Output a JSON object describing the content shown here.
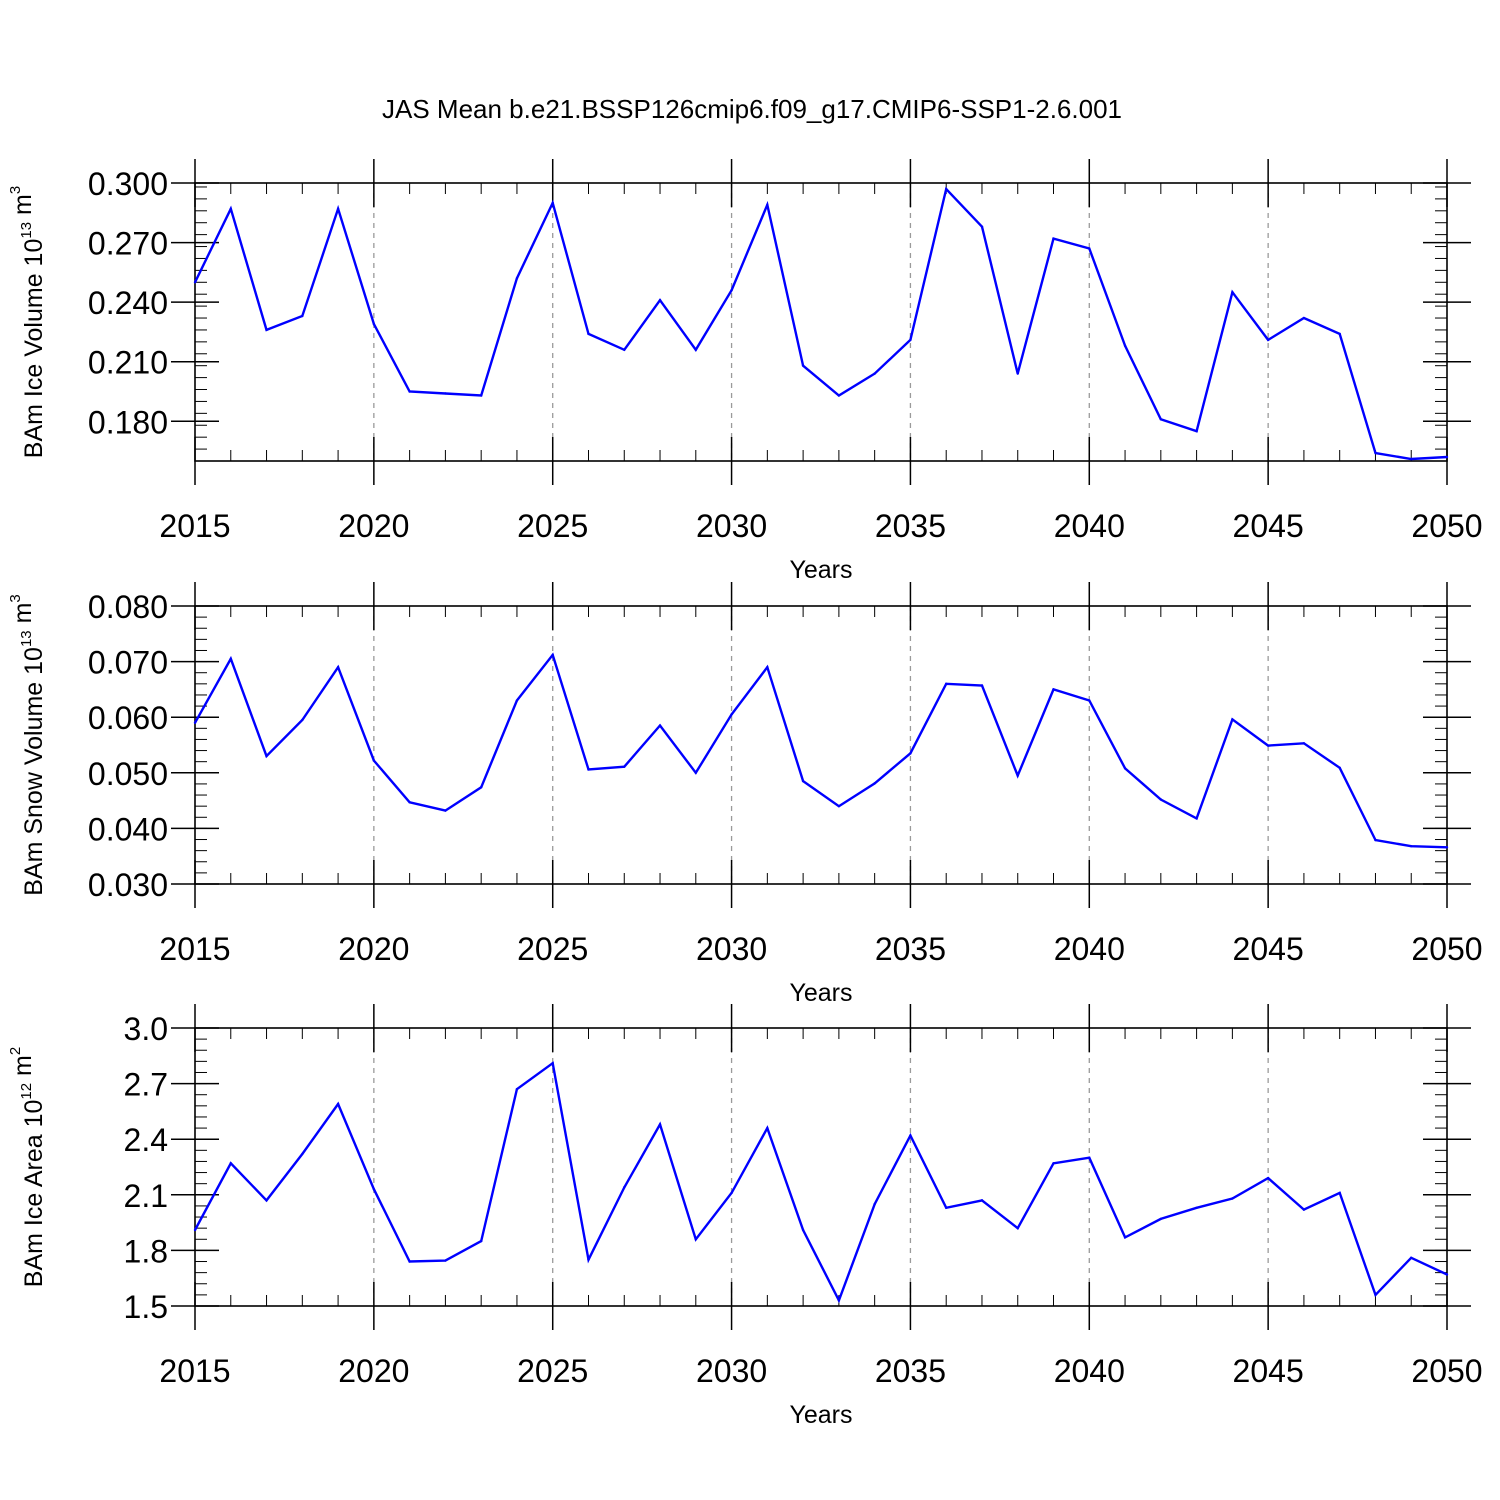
{
  "title": "JAS Mean b.e21.BSSP126cmip6.f09_g17.CMIP6-SSP1-2.6.001",
  "colors": {
    "line": "#0000ff",
    "axis": "#000000",
    "grid": "#9a9a9a"
  },
  "chart_data": [
    {
      "type": "line",
      "xlabel": "Years",
      "ylabel": {
        "prefix": "BAm Ice Volume 10",
        "exp": "13",
        "unit": " m",
        "unit_exp": "3"
      },
      "xlim": [
        2015,
        2050
      ],
      "ylim": [
        0.16,
        0.3
      ],
      "xticks": [
        2015,
        2020,
        2025,
        2030,
        2035,
        2040,
        2045,
        2050
      ],
      "xtick_labels": [
        "2015",
        "2020",
        "2025",
        "2030",
        "2035",
        "2040",
        "2045",
        "2050"
      ],
      "yticks": [
        0.18,
        0.21,
        0.24,
        0.27,
        0.3
      ],
      "ytick_labels": [
        "0.180",
        "0.210",
        "0.240",
        "0.270",
        "0.300"
      ],
      "grid": "vertical dashed at major x ticks",
      "x": [
        2015,
        2016,
        2017,
        2018,
        2019,
        2020,
        2021,
        2022,
        2023,
        2024,
        2025,
        2026,
        2027,
        2028,
        2029,
        2030,
        2031,
        2032,
        2033,
        2034,
        2035,
        2036,
        2037,
        2038,
        2039,
        2040,
        2041,
        2042,
        2043,
        2044,
        2045,
        2046,
        2047,
        2048,
        2049,
        2050
      ],
      "values": [
        0.25,
        0.287,
        0.226,
        0.233,
        0.287,
        0.229,
        0.195,
        0.194,
        0.193,
        0.252,
        0.29,
        0.224,
        0.216,
        0.241,
        0.216,
        0.246,
        0.289,
        0.208,
        0.193,
        0.204,
        0.221,
        0.297,
        0.278,
        0.204,
        0.272,
        0.267,
        0.218,
        0.181,
        0.175,
        0.245,
        0.221,
        0.232,
        0.224,
        0.164,
        0.161,
        0.162
      ]
    },
    {
      "type": "line",
      "xlabel": "Years",
      "ylabel": {
        "prefix": "BAm Snow Volume 10",
        "exp": "13",
        "unit": " m",
        "unit_exp": "3"
      },
      "xlim": [
        2015,
        2050
      ],
      "ylim": [
        0.03,
        0.08
      ],
      "xticks": [
        2015,
        2020,
        2025,
        2030,
        2035,
        2040,
        2045,
        2050
      ],
      "xtick_labels": [
        "2015",
        "2020",
        "2025",
        "2030",
        "2035",
        "2040",
        "2045",
        "2050"
      ],
      "yticks": [
        0.03,
        0.04,
        0.05,
        0.06,
        0.07,
        0.08
      ],
      "ytick_labels": [
        "0.030",
        "0.040",
        "0.050",
        "0.060",
        "0.070",
        "0.080"
      ],
      "grid": "vertical dashed at major x ticks",
      "x": [
        2015,
        2016,
        2017,
        2018,
        2019,
        2020,
        2021,
        2022,
        2023,
        2024,
        2025,
        2026,
        2027,
        2028,
        2029,
        2030,
        2031,
        2032,
        2033,
        2034,
        2035,
        2036,
        2037,
        2038,
        2039,
        2040,
        2041,
        2042,
        2043,
        2044,
        2045,
        2046,
        2047,
        2048,
        2049,
        2050
      ],
      "values": [
        0.059,
        0.0705,
        0.053,
        0.0595,
        0.069,
        0.0522,
        0.0447,
        0.0432,
        0.0474,
        0.063,
        0.0712,
        0.0506,
        0.0511,
        0.0585,
        0.05,
        0.0605,
        0.069,
        0.0485,
        0.044,
        0.0481,
        0.0535,
        0.066,
        0.0657,
        0.0495,
        0.065,
        0.063,
        0.0508,
        0.0452,
        0.0418,
        0.0596,
        0.0549,
        0.0553,
        0.0509,
        0.0379,
        0.0368,
        0.0366
      ]
    },
    {
      "type": "line",
      "xlabel": "Years",
      "ylabel": {
        "prefix": "BAm Ice Area 10",
        "exp": "12",
        "unit": " m",
        "unit_exp": "2"
      },
      "xlim": [
        2015,
        2050
      ],
      "ylim": [
        1.5,
        3.0
      ],
      "xticks": [
        2015,
        2020,
        2025,
        2030,
        2035,
        2040,
        2045,
        2050
      ],
      "xtick_labels": [
        "2015",
        "2020",
        "2025",
        "2030",
        "2035",
        "2040",
        "2045",
        "2050"
      ],
      "yticks": [
        1.5,
        1.8,
        2.1,
        2.4,
        2.7,
        3.0
      ],
      "ytick_labels": [
        "1.5",
        "1.8",
        "2.1",
        "2.4",
        "2.7",
        "3.0"
      ],
      "grid": "vertical dashed at major x ticks",
      "x": [
        2015,
        2016,
        2017,
        2018,
        2019,
        2020,
        2021,
        2022,
        2023,
        2024,
        2025,
        2026,
        2027,
        2028,
        2029,
        2030,
        2031,
        2032,
        2033,
        2034,
        2035,
        2036,
        2037,
        2038,
        2039,
        2040,
        2041,
        2042,
        2043,
        2044,
        2045,
        2046,
        2047,
        2048,
        2049,
        2050
      ],
      "values": [
        1.91,
        2.27,
        2.07,
        2.32,
        2.59,
        2.13,
        1.74,
        1.745,
        1.85,
        2.67,
        2.81,
        1.75,
        2.14,
        2.48,
        1.86,
        2.11,
        2.46,
        1.91,
        1.53,
        2.05,
        2.42,
        2.03,
        2.07,
        1.92,
        2.27,
        2.3,
        1.87,
        1.97,
        2.03,
        2.08,
        2.19,
        2.02,
        2.11,
        1.56,
        1.76,
        1.67
      ]
    }
  ]
}
